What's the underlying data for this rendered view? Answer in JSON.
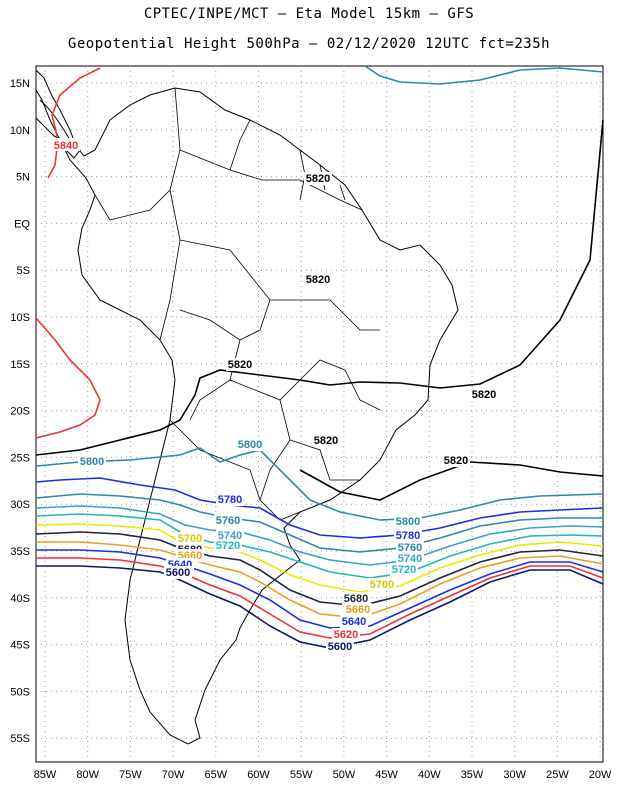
{
  "title_line1": "CPTEC/INPE/MCT –  Eta Model 15km – GFS",
  "title_line2": "Geopotential Height 500hPa – 02/12/2020 12UTC fct=235h",
  "lat_labels": [
    "15N",
    "10N",
    "5N",
    "EQ",
    "5S",
    "10S",
    "15S",
    "20S",
    "25S",
    "30S",
    "35S",
    "40S",
    "45S",
    "50S",
    "55S"
  ],
  "lon_labels": [
    "85W",
    "80W",
    "75W",
    "70W",
    "65W",
    "60W",
    "55W",
    "50W",
    "45W",
    "40W",
    "35W",
    "30W",
    "25W",
    "20W"
  ],
  "contours": [
    {
      "value": "5840",
      "color": "#ee3333"
    },
    {
      "value": "5820",
      "color": "#000000"
    },
    {
      "value": "5800",
      "color": "#2a8aa8"
    },
    {
      "value": "5780",
      "color": "#1a2ee0"
    },
    {
      "value": "5760",
      "color": "#2a8aa8"
    },
    {
      "value": "5740",
      "color": "#3aa0c8"
    },
    {
      "value": "5720",
      "color": "#1fb8b8"
    },
    {
      "value": "5700",
      "color": "#e8e800"
    },
    {
      "value": "5680",
      "color": "#222244"
    },
    {
      "value": "5660",
      "color": "#e8a020"
    },
    {
      "value": "5640",
      "color": "#1a2ee0"
    },
    {
      "value": "5620",
      "color": "#ee3333"
    },
    {
      "value": "5600",
      "color": "#0a1a6a"
    }
  ]
}
